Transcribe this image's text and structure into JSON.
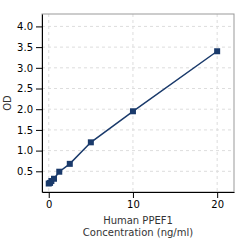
{
  "chart_data": {
    "type": "line",
    "x": [
      0.0,
      0.156,
      0.313,
      0.625,
      1.25,
      2.5,
      5.0,
      10.0,
      20.0
    ],
    "values": [
      0.205,
      0.22,
      0.265,
      0.32,
      0.49,
      0.68,
      1.2,
      1.95,
      3.4
    ],
    "color": "#1a3a6b",
    "marker": "square",
    "xlabel": "Human PPEF1\nConcentration (ng/ml)",
    "ylabel": "OD",
    "xlim": [
      -0.8,
      22
    ],
    "ylim": [
      0.0,
      4.3
    ],
    "xticks": [
      0,
      10,
      20
    ],
    "yticks": [
      0.5,
      {
        "value": 1,
        "label": "1.0"
      },
      1.5,
      {
        "value": 2,
        "label": "2.0"
      },
      2.5,
      {
        "value": 3,
        "label": "3.0"
      },
      3.5,
      {
        "value": 4,
        "label": "4.0"
      }
    ],
    "grid": true
  }
}
